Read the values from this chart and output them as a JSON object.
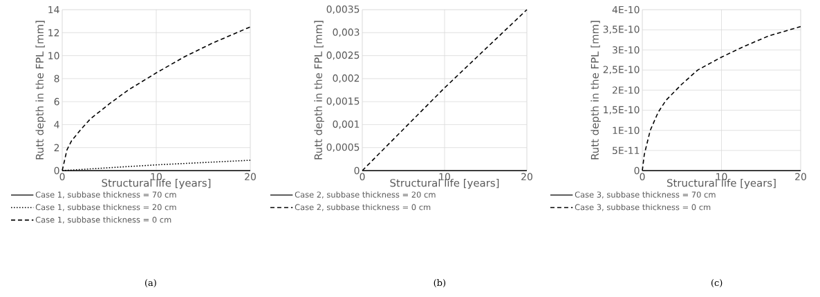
{
  "chart_data": [
    {
      "type": "line",
      "xlabel": "Structural life [years]",
      "ylabel": "Rutt depth in the FPL [mm]",
      "xlim": [
        0,
        20
      ],
      "xticks": [
        0,
        10,
        20
      ],
      "ylim": [
        0,
        14
      ],
      "yticks": [
        0,
        2,
        4,
        6,
        8,
        10,
        12,
        14
      ],
      "grid": true,
      "legend": "bottom",
      "annotations": [
        "(a)"
      ],
      "series": [
        {
          "name": "Case 1, subbase thickness = 70 cm",
          "color": "#000000",
          "line_style": "solid",
          "x": [
            0,
            20
          ],
          "values": [
            0,
            0
          ]
        },
        {
          "name": "Case 1, subbase thickness = 20 cm",
          "color": "#000000",
          "line_style": "dotted",
          "x": [
            0,
            5,
            10,
            15,
            20
          ],
          "values": [
            0,
            0.25,
            0.5,
            0.7,
            0.9
          ]
        },
        {
          "name": "Case 1, subbase thickness = 0 cm",
          "color": "#000000",
          "line_style": "dashed",
          "x": [
            0,
            0.5,
            1,
            2,
            3,
            5,
            7,
            10,
            13,
            16,
            20
          ],
          "values": [
            0,
            1.8,
            2.6,
            3.6,
            4.5,
            5.8,
            7.0,
            8.5,
            9.9,
            11.1,
            12.5
          ]
        }
      ]
    },
    {
      "type": "line",
      "xlabel": "Structural life [years]",
      "ylabel": "Rutt depth in the FPL [mm]",
      "xlim": [
        0,
        20
      ],
      "xticks": [
        0,
        10,
        20
      ],
      "ylim": [
        0,
        0.0035
      ],
      "yticks": [
        0,
        {
          "value": 0.0005,
          "label": "0,0005"
        },
        {
          "value": 0.001,
          "label": "0,001"
        },
        {
          "value": 0.0015,
          "label": "0,0015"
        },
        {
          "value": 0.002,
          "label": "0,002"
        },
        {
          "value": 0.0025,
          "label": "0,0025"
        },
        {
          "value": 0.003,
          "label": "0,003"
        },
        {
          "value": 0.0035,
          "label": "0,0035"
        }
      ],
      "grid": true,
      "legend": "bottom",
      "annotations": [
        "(b)"
      ],
      "series": [
        {
          "name": "Case 2, subbase thickness = 20 cm",
          "color": "#000000",
          "line_style": "solid",
          "x": [
            0,
            20
          ],
          "values": [
            0,
            0
          ]
        },
        {
          "name": "Case 2, subbase thickness = 0 cm",
          "color": "#000000",
          "line_style": "dashed",
          "x": [
            0,
            10,
            20
          ],
          "values": [
            0,
            0.0018,
            0.0035
          ]
        }
      ]
    },
    {
      "type": "line",
      "xlabel": "Structural life [years]",
      "ylabel": "Rutt depth in the FPL [mm]",
      "xlim": [
        0,
        20
      ],
      "xticks": [
        0,
        10,
        20
      ],
      "ylim": [
        0,
        4e-10
      ],
      "yticks": [
        0,
        {
          "value": 5e-11,
          "label": "5E-11"
        },
        {
          "value": 1e-10,
          "label": "1E-10"
        },
        {
          "value": 1.5e-10,
          "label": "1,5E-10"
        },
        {
          "value": 2e-10,
          "label": "2E-10"
        },
        {
          "value": 2.5e-10,
          "label": "2,5E-10"
        },
        {
          "value": 3e-10,
          "label": "3E-10"
        },
        {
          "value": 3.5e-10,
          "label": "3,5E-10"
        },
        {
          "value": 4e-10,
          "label": "4E-10"
        }
      ],
      "grid": true,
      "legend": "bottom",
      "annotations": [
        "(c)"
      ],
      "series": [
        {
          "name": "Case 3, subbase thickness = 70 cm",
          "color": "#000000",
          "line_style": "solid",
          "x": [
            0,
            20
          ],
          "values": [
            0,
            0
          ]
        },
        {
          "name": "Case 3, subbase thickness = 0 cm",
          "color": "#000000",
          "line_style": "dashed",
          "x": [
            0,
            0.25,
            1,
            2,
            3,
            5,
            7,
            10,
            13,
            16,
            20
          ],
          "values": [
            0,
            4e-11,
            1e-10,
            1.45e-10,
            1.75e-10,
            2.15e-10,
            2.5e-10,
            2.82e-10,
            3.1e-10,
            3.35e-10,
            3.58e-10
          ]
        }
      ]
    }
  ]
}
